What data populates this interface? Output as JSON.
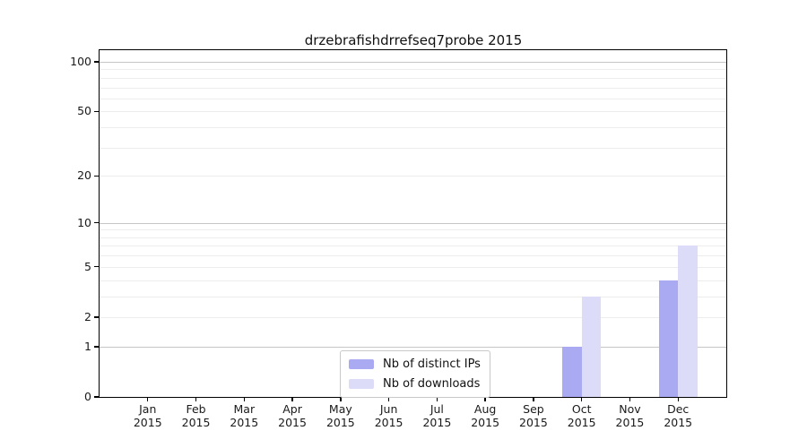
{
  "title": "drzebrafishdrrefseq7probe 2015",
  "chart_data": {
    "type": "bar",
    "title": "drzebrafishdrrefseq7probe 2015",
    "categories": [
      "Jan 2015",
      "Feb 2015",
      "Mar 2015",
      "Apr 2015",
      "May 2015",
      "Jun 2015",
      "Jul 2015",
      "Aug 2015",
      "Sep 2015",
      "Oct 2015",
      "Nov 2015",
      "Dec 2015"
    ],
    "series": [
      {
        "name": "Nb of distinct IPs",
        "color": "#aaaaf2",
        "values": [
          0,
          0,
          0,
          0,
          0,
          0,
          0,
          0,
          0,
          1,
          0,
          4
        ]
      },
      {
        "name": "Nb of downloads",
        "color": "#dcdcf8",
        "values": [
          0,
          0,
          0,
          0,
          0,
          0,
          0,
          0,
          0,
          3,
          0,
          7
        ]
      }
    ],
    "xlabel": "",
    "ylabel": "",
    "y_scale": "log10(1+y)",
    "ylim": [
      0,
      117
    ],
    "y_ticks": [
      0,
      1,
      2,
      5,
      10,
      20,
      50,
      100
    ],
    "gridlines_minor": [
      2,
      3,
      4,
      5,
      6,
      7,
      8,
      9,
      20,
      30,
      40,
      50,
      60,
      70,
      80,
      90
    ],
    "gridlines_major": [
      1,
      10,
      100
    ],
    "grid": "horizontal",
    "legend_position": "inside-bottom-center"
  },
  "colors": {
    "distinct_ips_bar": "#aaaaf2",
    "downloads_bar": "#dcdcf8",
    "gridline_minor": "#ededed",
    "gridline_major": "#c6c6c6",
    "axis": "#000000"
  }
}
